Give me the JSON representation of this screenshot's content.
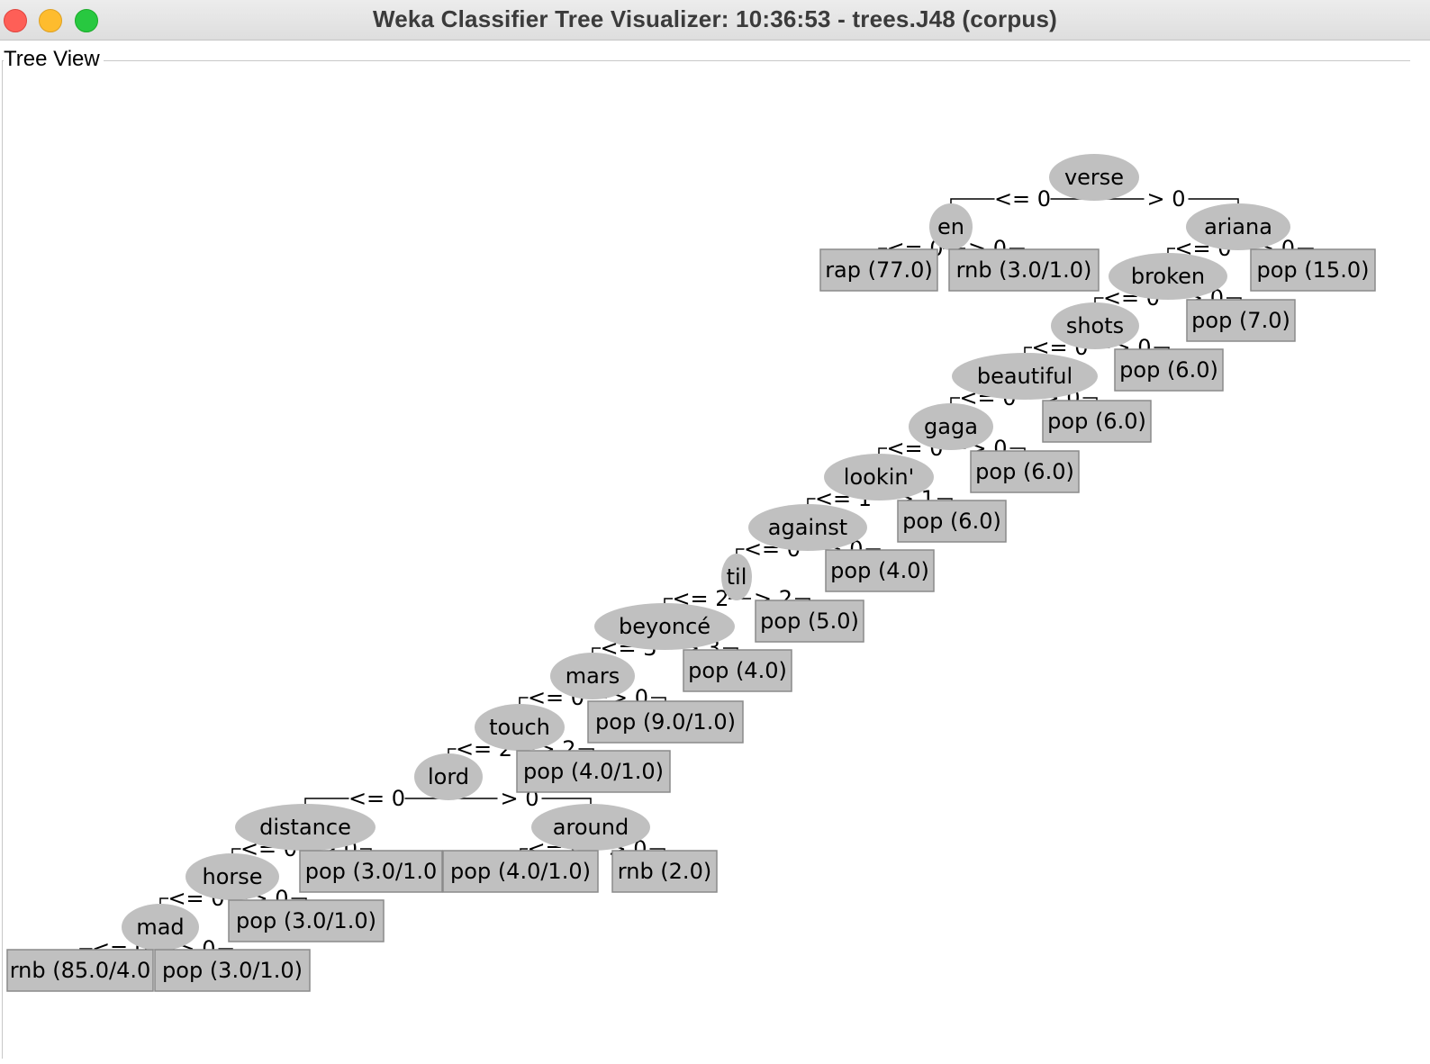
{
  "window": {
    "title": "Weka Classifier Tree Visualizer: 10:36:53 - trees.J48 (corpus)",
    "close_icon": "close-icon",
    "minimize_icon": "minimize-icon",
    "maximize_icon": "maximize-icon"
  },
  "panel": {
    "label": "Tree View"
  },
  "colors": {
    "node_fill": "#c0c0c0",
    "leaf_fill": "#c0c0c0",
    "edge": "#000000",
    "background": "#ffffff"
  },
  "tree": {
    "nodes": [
      {
        "id": "n1",
        "kind": "split",
        "label": "verse"
      },
      {
        "id": "n2",
        "kind": "split",
        "label": "en"
      },
      {
        "id": "n3",
        "kind": "split",
        "label": "ariana"
      },
      {
        "id": "l1",
        "kind": "leaf",
        "label": "rap (77.0)"
      },
      {
        "id": "l2",
        "kind": "leaf",
        "label": "rnb (3.0/1.0)"
      },
      {
        "id": "n4",
        "kind": "split",
        "label": "broken"
      },
      {
        "id": "l3",
        "kind": "leaf",
        "label": "pop (15.0)"
      },
      {
        "id": "n5",
        "kind": "split",
        "label": "shots"
      },
      {
        "id": "l4",
        "kind": "leaf",
        "label": "pop (7.0)"
      },
      {
        "id": "n6",
        "kind": "split",
        "label": "beautiful"
      },
      {
        "id": "l5",
        "kind": "leaf",
        "label": "pop (6.0)"
      },
      {
        "id": "n7",
        "kind": "split",
        "label": "gaga"
      },
      {
        "id": "l6",
        "kind": "leaf",
        "label": "pop (6.0)"
      },
      {
        "id": "n8",
        "kind": "split",
        "label": "lookin'"
      },
      {
        "id": "l7",
        "kind": "leaf",
        "label": "pop (6.0)"
      },
      {
        "id": "n9",
        "kind": "split",
        "label": "against"
      },
      {
        "id": "l8",
        "kind": "leaf",
        "label": "pop (6.0)"
      },
      {
        "id": "n10",
        "kind": "split",
        "label": "til"
      },
      {
        "id": "l9",
        "kind": "leaf",
        "label": "pop (4.0)"
      },
      {
        "id": "n11",
        "kind": "split",
        "label": "beyoncé"
      },
      {
        "id": "l10",
        "kind": "leaf",
        "label": "pop (5.0)"
      },
      {
        "id": "n12",
        "kind": "split",
        "label": "mars"
      },
      {
        "id": "l11",
        "kind": "leaf",
        "label": "pop (4.0)"
      },
      {
        "id": "n13",
        "kind": "split",
        "label": "touch"
      },
      {
        "id": "l12",
        "kind": "leaf",
        "label": "pop (9.0/1.0)"
      },
      {
        "id": "n14",
        "kind": "split",
        "label": "lord"
      },
      {
        "id": "l13",
        "kind": "leaf",
        "label": "pop (4.0/1.0)"
      },
      {
        "id": "n15",
        "kind": "split",
        "label": "distance"
      },
      {
        "id": "n16",
        "kind": "split",
        "label": "around"
      },
      {
        "id": "n17",
        "kind": "split",
        "label": "horse"
      },
      {
        "id": "l14",
        "kind": "leaf",
        "label": "pop (3.0/1.0"
      },
      {
        "id": "l15",
        "kind": "leaf",
        "label": "pop (4.0/1.0)"
      },
      {
        "id": "l16",
        "kind": "leaf",
        "label": "rnb (2.0)"
      },
      {
        "id": "n18",
        "kind": "split",
        "label": "mad"
      },
      {
        "id": "l17",
        "kind": "leaf",
        "label": "pop (3.0/1.0)"
      },
      {
        "id": "l18",
        "kind": "leaf",
        "label": "rnb (85.0/4.0"
      },
      {
        "id": "l19",
        "kind": "leaf",
        "label": "pop (3.0/1.0)"
      }
    ],
    "edges": [
      {
        "from": "n1",
        "to": "n2",
        "label": "<= 0"
      },
      {
        "from": "n1",
        "to": "n3",
        "label": "> 0"
      },
      {
        "from": "n2",
        "to": "l1",
        "label": "<= 0"
      },
      {
        "from": "n2",
        "to": "l2",
        "label": "> 0"
      },
      {
        "from": "n3",
        "to": "n4",
        "label": "<= 0"
      },
      {
        "from": "n3",
        "to": "l3",
        "label": "> 0"
      },
      {
        "from": "n4",
        "to": "n5",
        "label": "<= 0"
      },
      {
        "from": "n4",
        "to": "l4",
        "label": "> 0"
      },
      {
        "from": "n5",
        "to": "n6",
        "label": "<= 0"
      },
      {
        "from": "n5",
        "to": "l5",
        "label": "> 0"
      },
      {
        "from": "n6",
        "to": "n7",
        "label": "<= 0"
      },
      {
        "from": "n6",
        "to": "l6",
        "label": "> 0"
      },
      {
        "from": "n7",
        "to": "n8",
        "label": "<= 0"
      },
      {
        "from": "n7",
        "to": "l7",
        "label": "> 0"
      },
      {
        "from": "n8",
        "to": "n9",
        "label": "<= 1"
      },
      {
        "from": "n8",
        "to": "l8",
        "label": "> 1"
      },
      {
        "from": "n9",
        "to": "n10",
        "label": "<= 0"
      },
      {
        "from": "n9",
        "to": "l9",
        "label": "> 0"
      },
      {
        "from": "n10",
        "to": "n11",
        "label": "<= 2"
      },
      {
        "from": "n10",
        "to": "l10",
        "label": "> 2"
      },
      {
        "from": "n11",
        "to": "n12",
        "label": "<= 3"
      },
      {
        "from": "n11",
        "to": "l11",
        "label": "> 3"
      },
      {
        "from": "n12",
        "to": "n13",
        "label": "<= 0"
      },
      {
        "from": "n12",
        "to": "l12",
        "label": "> 0"
      },
      {
        "from": "n13",
        "to": "n14",
        "label": "<= 2"
      },
      {
        "from": "n13",
        "to": "l13",
        "label": "> 2"
      },
      {
        "from": "n14",
        "to": "n15",
        "label": "<= 0"
      },
      {
        "from": "n14",
        "to": "n16",
        "label": "> 0"
      },
      {
        "from": "n15",
        "to": "n17",
        "label": "<= 0"
      },
      {
        "from": "n15",
        "to": "l14",
        "label": "> 0"
      },
      {
        "from": "n16",
        "to": "l15",
        "label": "<= 0"
      },
      {
        "from": "n16",
        "to": "l16",
        "label": "> 0"
      },
      {
        "from": "n17",
        "to": "n18",
        "label": "<= 0"
      },
      {
        "from": "n17",
        "to": "l17",
        "label": "> 0"
      },
      {
        "from": "n18",
        "to": "l18",
        "label": "<= 0"
      },
      {
        "from": "n18",
        "to": "l19",
        "label": "> 0"
      }
    ]
  }
}
